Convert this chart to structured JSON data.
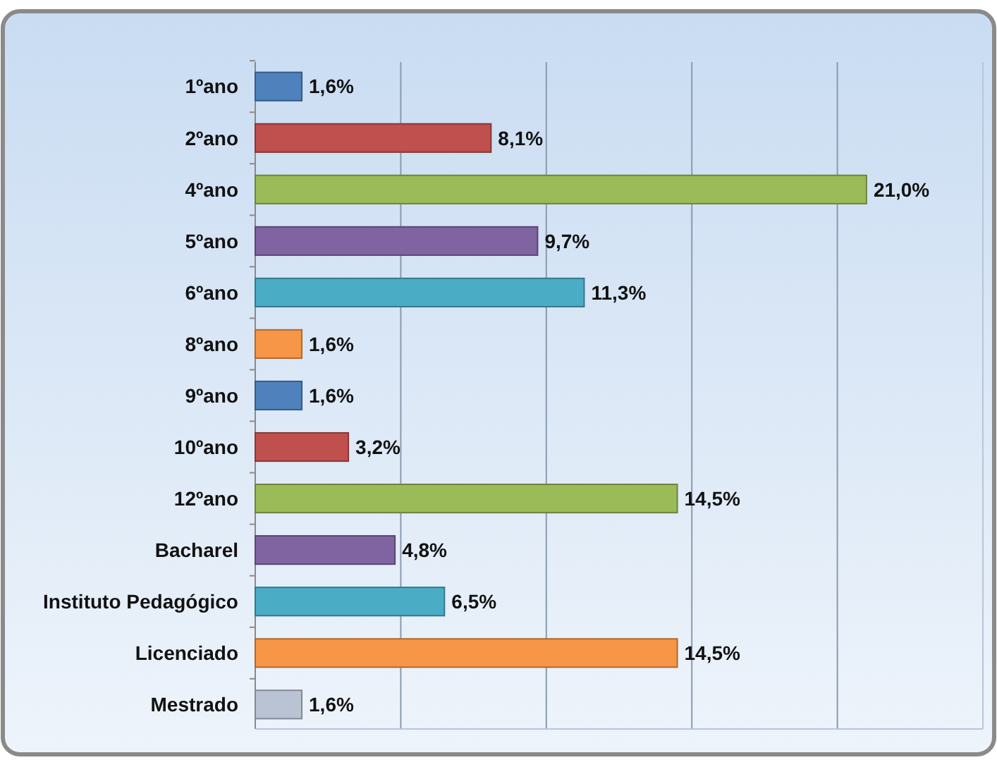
{
  "chart_data": {
    "type": "bar",
    "orientation": "horizontal",
    "categories": [
      "1ºano",
      "2ºano",
      "4ºano",
      "5ºano",
      "6ºano",
      "8ºano",
      "9ºano",
      "10ºano",
      "12ºano",
      "Bacharel",
      "Instituto Pedagógico",
      "Licenciado",
      "Mestrado"
    ],
    "values": [
      1.6,
      8.1,
      21.0,
      9.7,
      11.3,
      1.6,
      1.6,
      3.2,
      14.5,
      4.8,
      6.5,
      14.5,
      1.6
    ],
    "value_labels": [
      "1,6%",
      "8,1%",
      "21,0%",
      "9,7%",
      "11,3%",
      "1,6%",
      "1,6%",
      "3,2%",
      "14,5%",
      "4,8%",
      "6,5%",
      "14,5%",
      "1,6%"
    ],
    "colors": [
      "#4f81bd",
      "#c0504d",
      "#9bbb59",
      "#8064a2",
      "#4bacc6",
      "#f79646",
      "#4f81bd",
      "#c0504d",
      "#9bbb59",
      "#8064a2",
      "#4bacc6",
      "#f79646",
      "#b9c3d3"
    ],
    "xlim": [
      0,
      25
    ],
    "xticks": [
      {
        "value": 0,
        "label": null
      },
      {
        "value": 5,
        "label": null
      },
      {
        "value": 10,
        "label": null
      },
      {
        "value": 15,
        "label": null
      },
      {
        "value": 20,
        "label": null
      }
    ],
    "tick_labels": "y",
    "grid": "x"
  }
}
